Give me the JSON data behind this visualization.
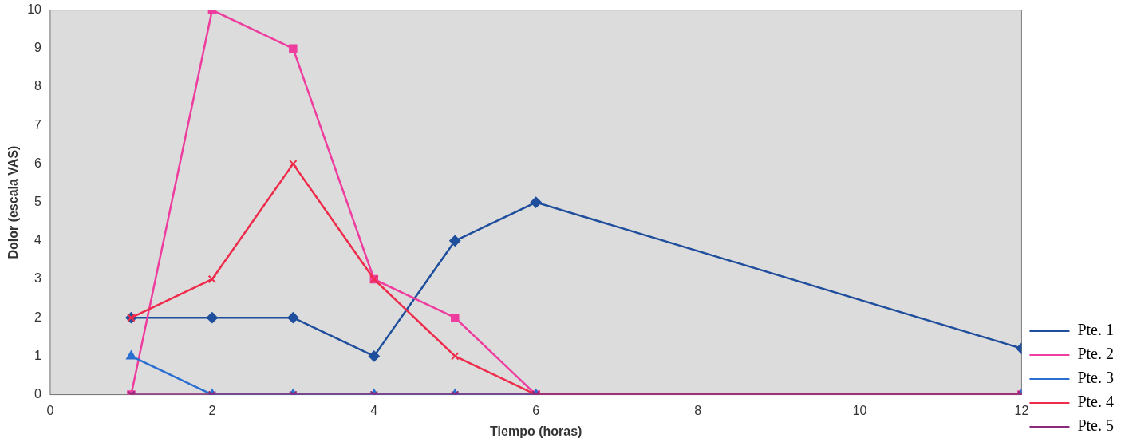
{
  "chart_data": {
    "type": "line",
    "xlabel": "Tiempo (horas)",
    "ylabel": "Dolor (escala VAS)",
    "x": [
      1,
      2,
      3,
      4,
      5,
      6,
      12
    ],
    "series": [
      {
        "name": "Pte. 1",
        "color": "#1f4e9c",
        "marker": "diamond",
        "values": [
          2,
          2,
          2,
          1,
          4,
          5,
          1.2
        ]
      },
      {
        "name": "Pte. 2",
        "color": "#ee3d9e",
        "marker": "square",
        "values": [
          0,
          10,
          9,
          3,
          2,
          0,
          0
        ]
      },
      {
        "name": "Pte. 3",
        "color": "#2a6fd0",
        "marker": "triangle",
        "values": [
          1,
          0,
          0,
          0,
          0,
          0,
          0
        ]
      },
      {
        "name": "Pte. 4",
        "color": "#ee2b4a",
        "marker": "cross",
        "values": [
          2,
          3,
          6,
          3,
          1,
          0,
          0
        ]
      },
      {
        "name": "Pte. 5",
        "color": "#8b2a7a",
        "marker": "cross",
        "values": [
          0,
          0,
          0,
          0,
          0,
          0,
          0
        ]
      }
    ],
    "xlim": [
      0,
      12
    ],
    "xticks": [
      0,
      2,
      4,
      6,
      8,
      10,
      12
    ],
    "ylim": [
      0,
      10
    ],
    "yticks": [
      0,
      1,
      2,
      3,
      4,
      5,
      6,
      7,
      8,
      9,
      10
    ],
    "grid": false,
    "legend": "bottom right",
    "line_style": "solid"
  }
}
